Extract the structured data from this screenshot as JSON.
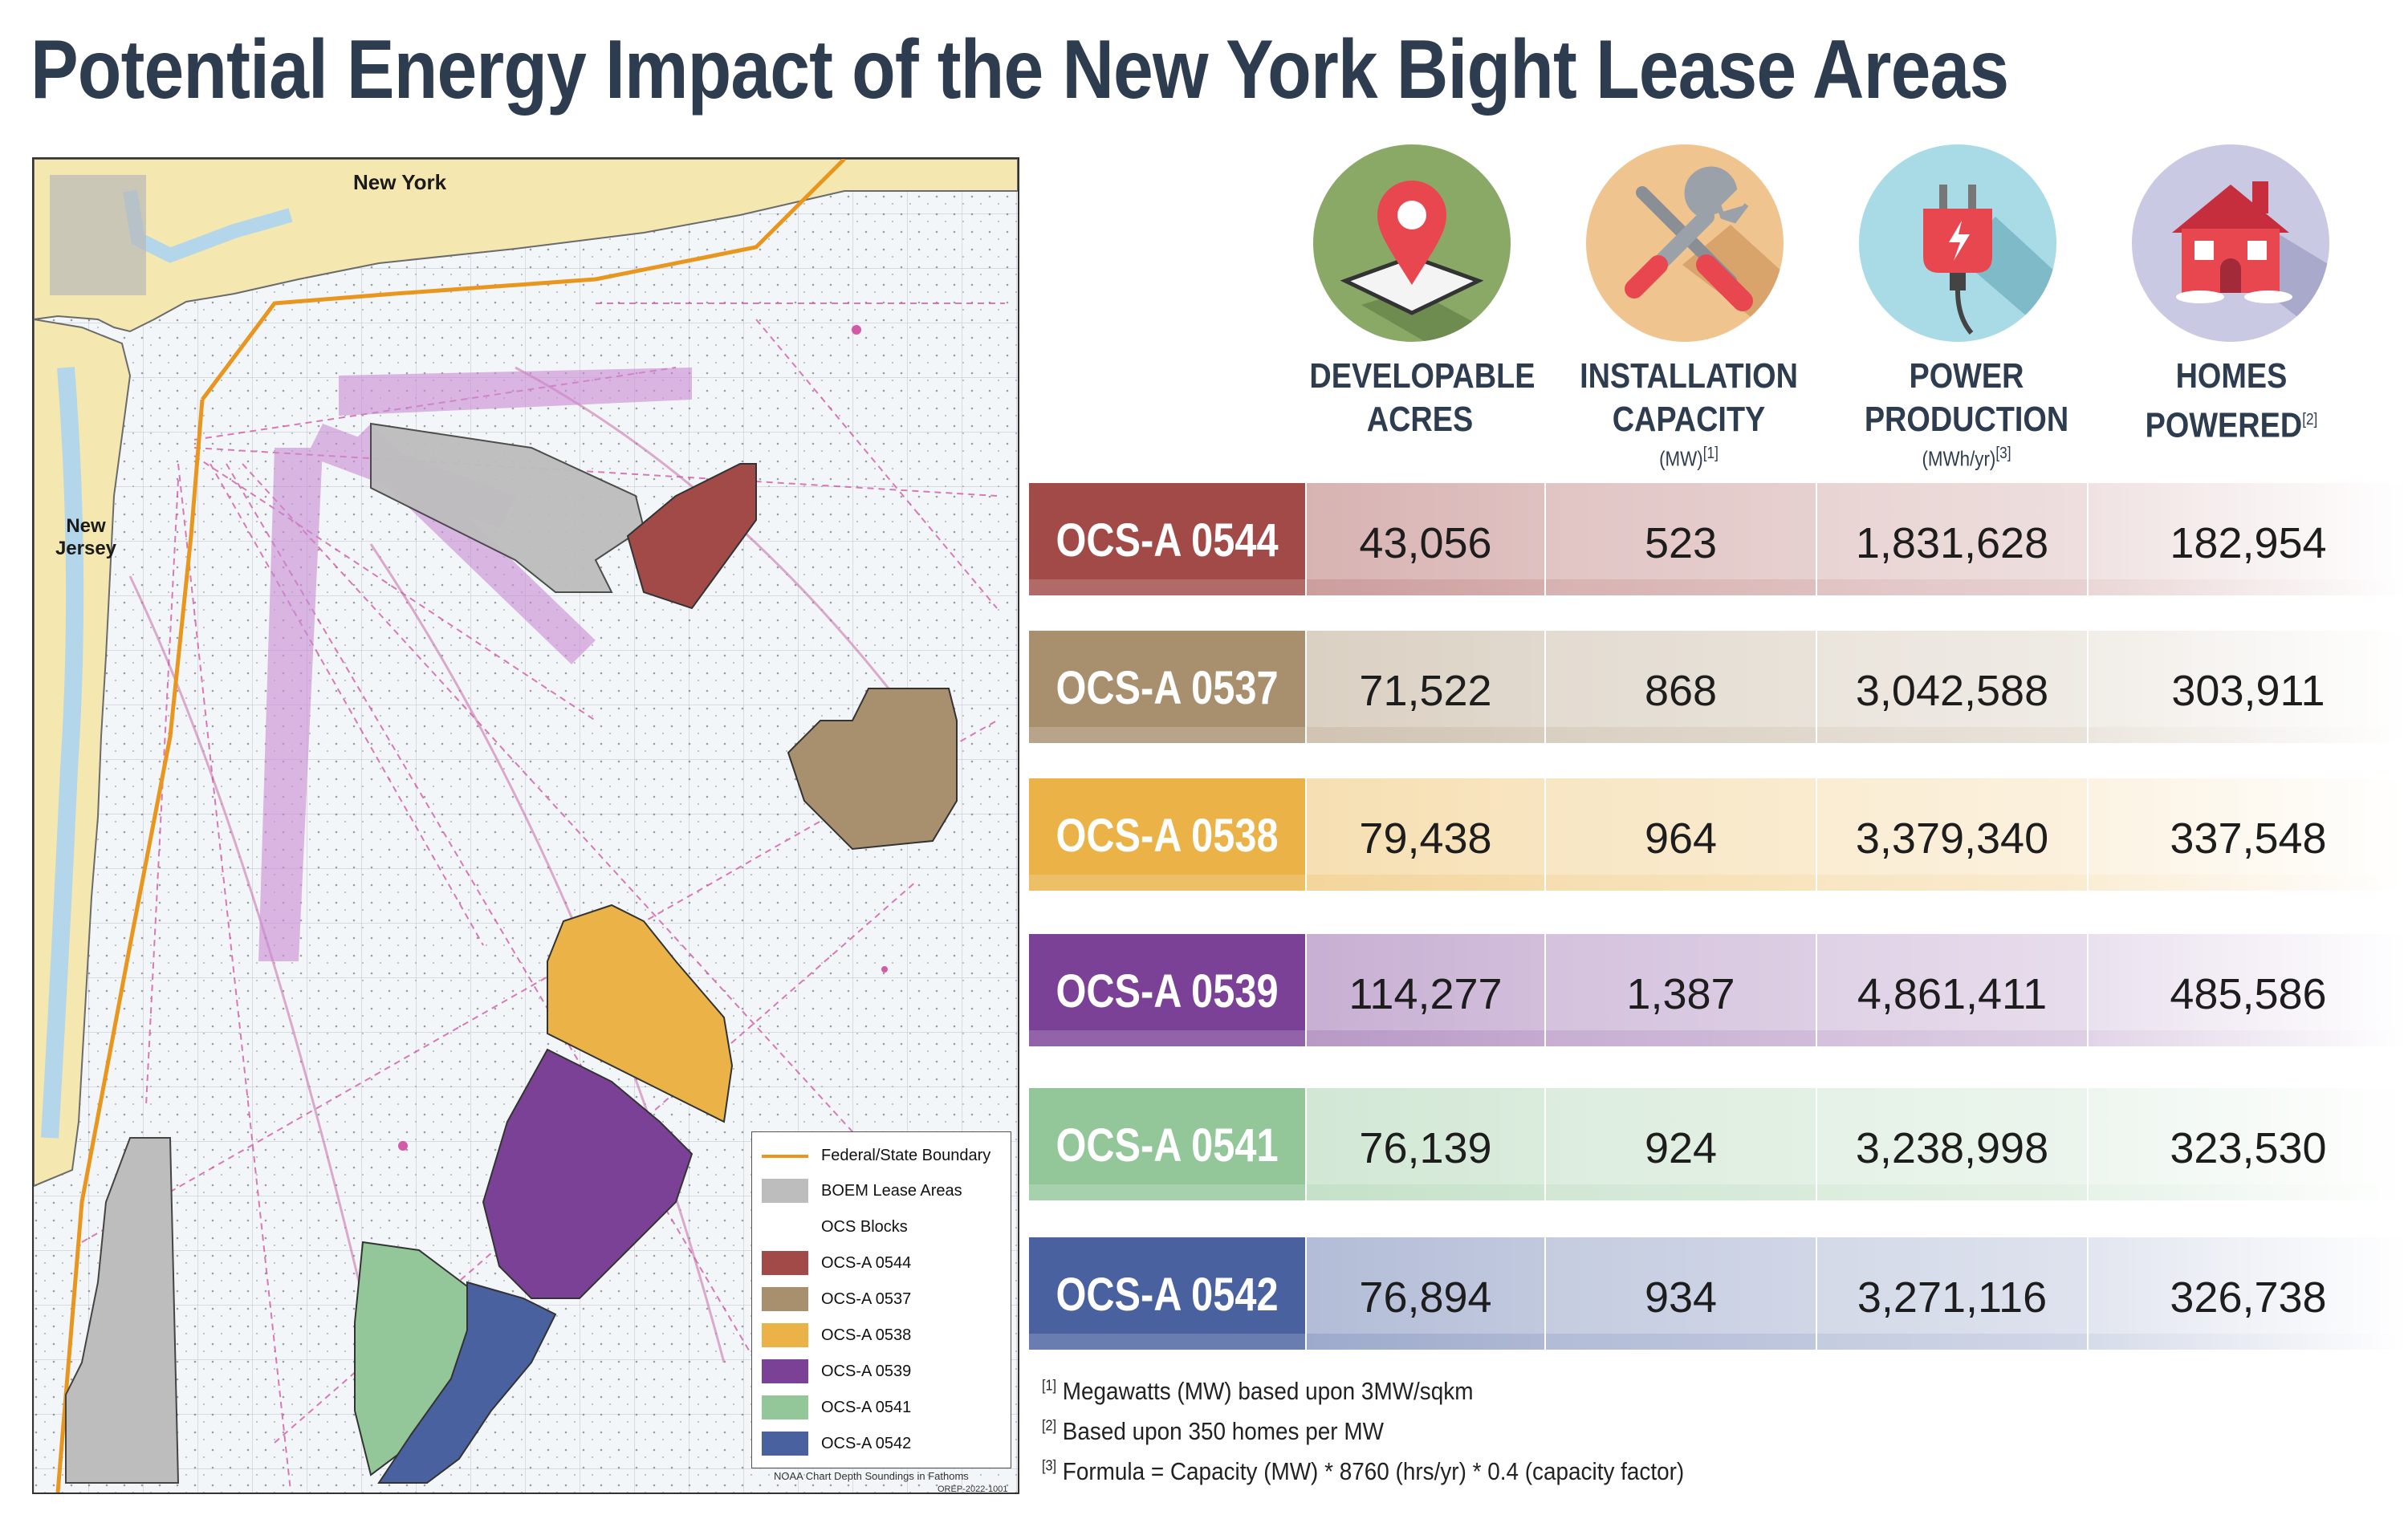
{
  "title": "Potential Energy Impact of the New York Bight Lease Areas",
  "map": {
    "places": [
      "New York",
      "New Jersey"
    ],
    "legend": [
      {
        "label": "Federal/State Boundary",
        "kind": "line",
        "color": "#e8961e"
      },
      {
        "label": "BOEM Lease Areas",
        "kind": "swatch",
        "color": "#bdbdbd"
      },
      {
        "label": "OCS Blocks",
        "kind": "empty",
        "color": "#ffffff"
      },
      {
        "label": "OCS-A 0544",
        "kind": "swatch",
        "color": "#a14a48"
      },
      {
        "label": "OCS-A 0537",
        "kind": "swatch",
        "color": "#a8906f"
      },
      {
        "label": "OCS-A 0538",
        "kind": "swatch",
        "color": "#eab247"
      },
      {
        "label": "OCS-A 0539",
        "kind": "swatch",
        "color": "#7b4196"
      },
      {
        "label": "OCS-A 0541",
        "kind": "swatch",
        "color": "#93c79a"
      },
      {
        "label": "OCS-A 0542",
        "kind": "swatch",
        "color": "#4a61a0"
      }
    ],
    "credit": "NOAA Chart Depth Soundings in Fathoms",
    "code": "OREP-2022-1001"
  },
  "columns": [
    {
      "line1": "DEVELOPABLE",
      "line2": "ACRES",
      "unit": "",
      "note": "",
      "icon": "map-pin-icon"
    },
    {
      "line1": "INSTALLATION",
      "line2": "CAPACITY",
      "unit": "(MW)",
      "note": "[1]",
      "icon": "tools-icon"
    },
    {
      "line1": "POWER",
      "line2": "PRODUCTION",
      "unit": "(MWh/yr)",
      "note": "[3]",
      "icon": "power-plug-icon"
    },
    {
      "line1": "HOMES",
      "line2": "POWERED",
      "unit": "",
      "note": "[2]",
      "icon": "house-icon"
    }
  ],
  "rows": [
    {
      "id": "OCS-A 0544",
      "color": "#a14a48",
      "acres": "43,056",
      "capacity": "523",
      "production": "1,831,628",
      "homes": "182,954"
    },
    {
      "id": "OCS-A 0537",
      "color": "#a8906f",
      "acres": "71,522",
      "capacity": "868",
      "production": "3,042,588",
      "homes": "303,911"
    },
    {
      "id": "OCS-A 0538",
      "color": "#eab247",
      "acres": "79,438",
      "capacity": "964",
      "production": "3,379,340",
      "homes": "337,548"
    },
    {
      "id": "OCS-A 0539",
      "color": "#7b4196",
      "acres": "114,277",
      "capacity": "1,387",
      "production": "4,861,411",
      "homes": "485,586"
    },
    {
      "id": "OCS-A 0541",
      "color": "#93c79a",
      "acres": "76,139",
      "capacity": "924",
      "production": "3,238,998",
      "homes": "323,530"
    },
    {
      "id": "OCS-A 0542",
      "color": "#4a61a0",
      "acres": "76,894",
      "capacity": "934",
      "production": "3,271,116",
      "homes": "326,738"
    }
  ],
  "footnotes": [
    {
      "mark": "[1]",
      "text": "Megawatts (MW) based upon 3MW/sqkm"
    },
    {
      "mark": "[2]",
      "text": "Based upon 350 homes per MW"
    },
    {
      "mark": "[3]",
      "text": "Formula = Capacity (MW) * 8760 (hrs/yr) * 0.4 (capacity factor)"
    }
  ]
}
